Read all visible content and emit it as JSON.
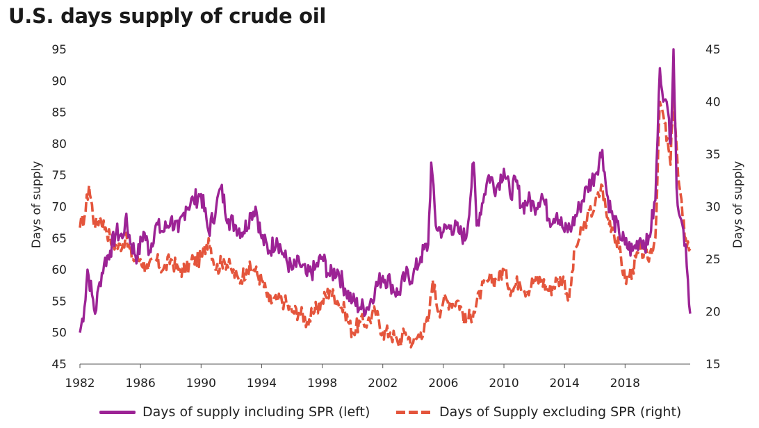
{
  "title": "U.S. days supply of crude oil",
  "colors": {
    "series_left": "#9c2395",
    "series_right": "#e4553c"
  },
  "chart_data": {
    "type": "line",
    "title": "U.S. days supply of crude oil",
    "xlabel": "",
    "x_ticks": [
      "1982",
      "1986",
      "1990",
      "1994",
      "1998",
      "2002",
      "2006",
      "2010",
      "2014",
      "2018"
    ],
    "xlim": [
      1982,
      2022.3
    ],
    "y_left": {
      "label": "Days of supply",
      "lim": [
        45,
        95
      ],
      "ticks": [
        "45",
        "50",
        "55",
        "60",
        "65",
        "70",
        "75",
        "80",
        "85",
        "90",
        "95"
      ]
    },
    "y_right": {
      "label": "Days of supply",
      "lim": [
        15,
        45
      ],
      "ticks": [
        "15",
        "20",
        "25",
        "30",
        "35",
        "40",
        "45"
      ]
    },
    "legend_position": "bottom",
    "series": [
      {
        "name": "Days of supply including SPR (left)",
        "axis": "left",
        "style": "solid",
        "points": [
          [
            1982.0,
            50
          ],
          [
            1982.3,
            54
          ],
          [
            1982.5,
            60
          ],
          [
            1982.8,
            56
          ],
          [
            1983.0,
            53
          ],
          [
            1983.3,
            58
          ],
          [
            1983.6,
            61
          ],
          [
            1984.0,
            63
          ],
          [
            1984.4,
            66
          ],
          [
            1984.8,
            65
          ],
          [
            1985.0,
            68
          ],
          [
            1985.4,
            64
          ],
          [
            1985.8,
            62
          ],
          [
            1986.2,
            66
          ],
          [
            1986.6,
            63
          ],
          [
            1987.0,
            67
          ],
          [
            1987.5,
            66
          ],
          [
            1988.0,
            68
          ],
          [
            1988.5,
            66
          ],
          [
            1989.0,
            70
          ],
          [
            1989.5,
            71
          ],
          [
            1990.0,
            72
          ],
          [
            1990.5,
            66
          ],
          [
            1991.0,
            70
          ],
          [
            1991.3,
            73
          ],
          [
            1991.8,
            68
          ],
          [
            1992.3,
            67
          ],
          [
            1992.8,
            66
          ],
          [
            1993.3,
            69
          ],
          [
            1993.6,
            70
          ],
          [
            1994.0,
            65
          ],
          [
            1994.5,
            63
          ],
          [
            1995.0,
            65
          ],
          [
            1995.5,
            62
          ],
          [
            1996.0,
            60
          ],
          [
            1996.5,
            61
          ],
          [
            1997.0,
            59
          ],
          [
            1997.5,
            60
          ],
          [
            1998.0,
            62
          ],
          [
            1998.5,
            59
          ],
          [
            1999.0,
            60
          ],
          [
            1999.5,
            57
          ],
          [
            2000.0,
            55
          ],
          [
            2000.5,
            54
          ],
          [
            2001.0,
            54
          ],
          [
            2001.5,
            57
          ],
          [
            2002.0,
            59
          ],
          [
            2002.5,
            58
          ],
          [
            2003.0,
            56
          ],
          [
            2003.5,
            59
          ],
          [
            2004.0,
            59
          ],
          [
            2004.5,
            62
          ],
          [
            2005.0,
            64
          ],
          [
            2005.2,
            77
          ],
          [
            2005.5,
            67
          ],
          [
            2006.0,
            66
          ],
          [
            2006.5,
            67
          ],
          [
            2007.0,
            66
          ],
          [
            2007.5,
            65
          ],
          [
            2008.0,
            77
          ],
          [
            2008.2,
            67
          ],
          [
            2008.7,
            72
          ],
          [
            2009.0,
            75
          ],
          [
            2009.5,
            73
          ],
          [
            2010.0,
            76
          ],
          [
            2010.4,
            72
          ],
          [
            2010.8,
            74
          ],
          [
            2011.2,
            70
          ],
          [
            2011.6,
            71
          ],
          [
            2012.0,
            70
          ],
          [
            2012.5,
            72
          ],
          [
            2013.0,
            68
          ],
          [
            2013.5,
            69
          ],
          [
            2014.0,
            66
          ],
          [
            2014.5,
            67
          ],
          [
            2015.0,
            70
          ],
          [
            2015.5,
            73
          ],
          [
            2016.0,
            75
          ],
          [
            2016.5,
            79
          ],
          [
            2016.8,
            72
          ],
          [
            2017.2,
            68
          ],
          [
            2017.6,
            66
          ],
          [
            2018.0,
            64
          ],
          [
            2018.5,
            63
          ],
          [
            2019.0,
            65
          ],
          [
            2019.5,
            64
          ],
          [
            2020.0,
            71
          ],
          [
            2020.3,
            92
          ],
          [
            2020.6,
            87
          ],
          [
            2020.9,
            84
          ],
          [
            2021.0,
            80
          ],
          [
            2021.2,
            95
          ],
          [
            2021.4,
            73
          ],
          [
            2021.7,
            68
          ],
          [
            2022.0,
            64
          ],
          [
            2022.3,
            53
          ]
        ]
      },
      {
        "name": "Days of Supply excluding SPR (right)",
        "axis": "right",
        "style": "dashed",
        "points": [
          [
            1982.0,
            28
          ],
          [
            1982.3,
            29
          ],
          [
            1982.6,
            32
          ],
          [
            1983.0,
            28
          ],
          [
            1983.3,
            29
          ],
          [
            1983.7,
            28
          ],
          [
            1984.0,
            27
          ],
          [
            1984.5,
            26
          ],
          [
            1985.0,
            27
          ],
          [
            1985.5,
            25
          ],
          [
            1986.0,
            25
          ],
          [
            1986.5,
            24
          ],
          [
            1987.0,
            25
          ],
          [
            1987.5,
            24
          ],
          [
            1988.0,
            25
          ],
          [
            1988.5,
            24
          ],
          [
            1989.0,
            24
          ],
          [
            1989.5,
            25
          ],
          [
            1990.0,
            25
          ],
          [
            1990.5,
            27
          ],
          [
            1991.0,
            24
          ],
          [
            1991.5,
            25
          ],
          [
            1992.0,
            24
          ],
          [
            1992.5,
            23
          ],
          [
            1993.0,
            24
          ],
          [
            1993.5,
            24
          ],
          [
            1994.0,
            23
          ],
          [
            1994.5,
            21
          ],
          [
            1995.0,
            21
          ],
          [
            1995.5,
            21
          ],
          [
            1996.0,
            20
          ],
          [
            1996.5,
            20
          ],
          [
            1997.0,
            19
          ],
          [
            1997.5,
            20
          ],
          [
            1998.0,
            21
          ],
          [
            1998.5,
            22
          ],
          [
            1999.0,
            21
          ],
          [
            1999.5,
            20
          ],
          [
            2000.0,
            18
          ],
          [
            2000.5,
            19
          ],
          [
            2001.0,
            19
          ],
          [
            2001.5,
            20
          ],
          [
            2002.0,
            18
          ],
          [
            2002.5,
            18
          ],
          [
            2003.0,
            17
          ],
          [
            2003.5,
            18
          ],
          [
            2004.0,
            17
          ],
          [
            2004.5,
            18
          ],
          [
            2005.0,
            19
          ],
          [
            2005.3,
            23
          ],
          [
            2005.7,
            20
          ],
          [
            2006.0,
            21
          ],
          [
            2006.5,
            21
          ],
          [
            2007.0,
            21
          ],
          [
            2007.5,
            19
          ],
          [
            2008.0,
            20
          ],
          [
            2008.5,
            22
          ],
          [
            2009.0,
            23
          ],
          [
            2009.5,
            23
          ],
          [
            2010.0,
            24
          ],
          [
            2010.5,
            22
          ],
          [
            2011.0,
            23
          ],
          [
            2011.5,
            22
          ],
          [
            2012.0,
            23
          ],
          [
            2012.5,
            23
          ],
          [
            2013.0,
            22
          ],
          [
            2013.5,
            23
          ],
          [
            2014.0,
            23
          ],
          [
            2014.3,
            21
          ],
          [
            2014.7,
            26
          ],
          [
            2015.0,
            27
          ],
          [
            2015.5,
            29
          ],
          [
            2016.0,
            30
          ],
          [
            2016.5,
            32
          ],
          [
            2016.8,
            29
          ],
          [
            2017.2,
            28
          ],
          [
            2017.6,
            26
          ],
          [
            2018.0,
            23
          ],
          [
            2018.5,
            24
          ],
          [
            2019.0,
            26
          ],
          [
            2019.5,
            25
          ],
          [
            2020.0,
            27
          ],
          [
            2020.3,
            40
          ],
          [
            2020.6,
            38
          ],
          [
            2021.0,
            34
          ],
          [
            2021.2,
            41
          ],
          [
            2021.5,
            33
          ],
          [
            2021.8,
            29
          ],
          [
            2022.0,
            27
          ],
          [
            2022.3,
            26
          ]
        ]
      }
    ]
  }
}
